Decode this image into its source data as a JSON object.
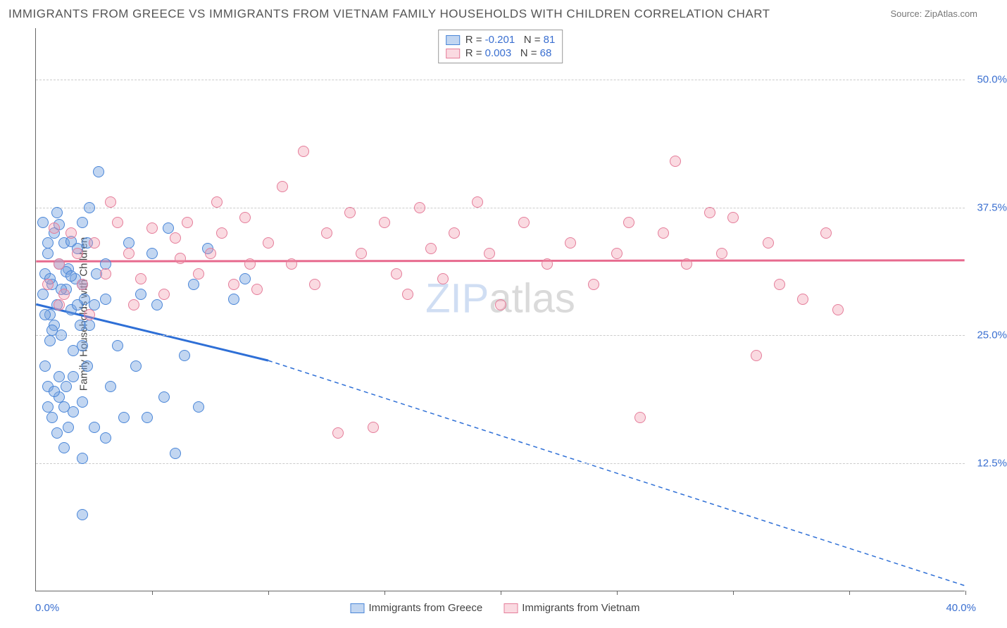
{
  "title": "IMMIGRANTS FROM GREECE VS IMMIGRANTS FROM VIETNAM FAMILY HOUSEHOLDS WITH CHILDREN CORRELATION CHART",
  "source_label": "Source: ZipAtlas.com",
  "watermark_a": "ZIP",
  "watermark_b": "atlas",
  "y_axis_label": "Family Households with Children",
  "colors": {
    "blue_fill": "rgba(120,165,225,0.45)",
    "blue_stroke": "#4a86d8",
    "pink_fill": "rgba(240,150,170,0.35)",
    "pink_stroke": "#e57d9a",
    "blue_line": "#2e6fd6",
    "pink_line": "#e76a8e",
    "axis_text": "#3a6fd0",
    "grid": "#cccccc"
  },
  "chart": {
    "type": "scatter",
    "xlim": [
      0,
      40
    ],
    "ylim": [
      0,
      55
    ],
    "y_ticks": [
      12.5,
      25.0,
      37.5,
      50.0
    ],
    "y_tick_labels": [
      "12.5%",
      "25.0%",
      "37.5%",
      "50.0%"
    ],
    "x_ticks": [
      5,
      10,
      15,
      20,
      25,
      30,
      35,
      40
    ],
    "x_min_label": "0.0%",
    "x_max_label": "40.0%"
  },
  "series": [
    {
      "name": "Immigrants from Greece",
      "color_key": "blue",
      "R_label": "R =",
      "R_value": "-0.201",
      "N_label": "N =",
      "N_value": "81",
      "trend": {
        "x1": 0,
        "y1": 28.0,
        "x2_solid": 10,
        "y2_solid": 22.5,
        "x2_dash": 40,
        "y2_dash": 0.5
      },
      "points": [
        [
          0.3,
          29
        ],
        [
          0.4,
          31
        ],
        [
          0.5,
          33
        ],
        [
          0.6,
          27
        ],
        [
          0.7,
          30
        ],
        [
          0.8,
          35
        ],
        [
          0.9,
          28
        ],
        [
          1.0,
          32
        ],
        [
          1.1,
          25
        ],
        [
          1.2,
          34
        ],
        [
          1.3,
          29.5
        ],
        [
          1.4,
          31.5
        ],
        [
          1.5,
          27.5
        ],
        [
          1.6,
          23.5
        ],
        [
          1.7,
          30.5
        ],
        [
          1.8,
          33.5
        ],
        [
          1.9,
          26
        ],
        [
          2.0,
          24
        ],
        [
          2.1,
          28.5
        ],
        [
          2.2,
          22
        ],
        [
          0.5,
          18
        ],
        [
          0.7,
          17
        ],
        [
          0.9,
          15.5
        ],
        [
          1.0,
          19
        ],
        [
          1.2,
          14
        ],
        [
          1.4,
          16
        ],
        [
          1.6,
          17.5
        ],
        [
          2.0,
          13
        ],
        [
          2.3,
          37.5
        ],
        [
          2.5,
          28
        ],
        [
          2.7,
          41
        ],
        [
          3.0,
          32
        ],
        [
          3.2,
          20
        ],
        [
          3.5,
          24
        ],
        [
          3.8,
          17
        ],
        [
          4.0,
          34
        ],
        [
          4.3,
          22
        ],
        [
          4.5,
          29
        ],
        [
          5.0,
          33
        ],
        [
          5.5,
          19
        ],
        [
          5.7,
          35.5
        ],
        [
          6.0,
          13.5
        ],
        [
          6.4,
          23
        ],
        [
          6.8,
          30
        ],
        [
          7.0,
          18
        ],
        [
          7.4,
          33.5
        ],
        [
          8.5,
          28.5
        ],
        [
          9.0,
          30.5
        ],
        [
          2.0,
          7.5
        ],
        [
          1.3,
          20
        ],
        [
          0.4,
          22
        ],
        [
          0.6,
          24.5
        ],
        [
          0.8,
          26
        ],
        [
          1.0,
          21
        ],
        [
          1.1,
          29.5
        ],
        [
          1.3,
          31.2
        ],
        [
          1.5,
          30.8
        ],
        [
          0.3,
          36
        ],
        [
          0.5,
          34
        ],
        [
          0.9,
          37
        ],
        [
          0.4,
          27
        ],
        [
          0.7,
          25.5
        ],
        [
          1.8,
          28
        ],
        [
          2.0,
          30
        ],
        [
          2.3,
          26
        ],
        [
          2.6,
          31
        ],
        [
          3.0,
          28.5
        ],
        [
          1.0,
          35.8
        ],
        [
          1.5,
          34.2
        ],
        [
          2.0,
          36
        ],
        [
          4.8,
          17
        ],
        [
          5.2,
          28
        ],
        [
          2.0,
          18.5
        ],
        [
          2.5,
          16
        ],
        [
          3.0,
          15
        ],
        [
          2.2,
          34
        ],
        [
          0.5,
          20
        ],
        [
          0.8,
          19.5
        ],
        [
          1.2,
          18
        ],
        [
          1.6,
          21
        ],
        [
          0.6,
          30.5
        ]
      ]
    },
    {
      "name": "Immigrants from Vietnam",
      "color_key": "pink",
      "R_label": "R =",
      "R_value": "0.003",
      "N_label": "N =",
      "N_value": "68",
      "trend": {
        "x1": 0,
        "y1": 32.2,
        "x2_solid": 40,
        "y2_solid": 32.3,
        "x2_dash": 40,
        "y2_dash": 32.3
      },
      "points": [
        [
          1.5,
          35
        ],
        [
          2.0,
          30
        ],
        [
          2.5,
          34
        ],
        [
          3.0,
          31
        ],
        [
          3.5,
          36
        ],
        [
          4.0,
          33
        ],
        [
          4.5,
          30.5
        ],
        [
          5.0,
          35.5
        ],
        [
          5.5,
          29
        ],
        [
          6.0,
          34.5
        ],
        [
          6.5,
          36
        ],
        [
          7.0,
          31
        ],
        [
          7.5,
          33
        ],
        [
          8.0,
          35
        ],
        [
          8.5,
          30
        ],
        [
          9.0,
          36.5
        ],
        [
          9.5,
          29.5
        ],
        [
          10.0,
          34
        ],
        [
          10.6,
          39.5
        ],
        [
          11.0,
          32
        ],
        [
          11.5,
          43
        ],
        [
          12.0,
          30
        ],
        [
          12.5,
          35
        ],
        [
          13.0,
          15.5
        ],
        [
          13.5,
          37
        ],
        [
          14.0,
          33
        ],
        [
          14.5,
          16
        ],
        [
          15.0,
          36
        ],
        [
          15.5,
          31
        ],
        [
          16.0,
          29
        ],
        [
          16.5,
          37.5
        ],
        [
          17.0,
          33.5
        ],
        [
          17.5,
          30.5
        ],
        [
          18.0,
          35
        ],
        [
          19.0,
          38
        ],
        [
          19.5,
          33
        ],
        [
          20.0,
          28
        ],
        [
          21.0,
          36
        ],
        [
          22.0,
          32
        ],
        [
          23.0,
          34
        ],
        [
          24.0,
          30
        ],
        [
          25.0,
          33
        ],
        [
          25.5,
          36
        ],
        [
          26.0,
          17
        ],
        [
          27.0,
          35
        ],
        [
          27.5,
          42
        ],
        [
          28.0,
          32
        ],
        [
          29.0,
          37
        ],
        [
          29.5,
          33
        ],
        [
          30.0,
          36.5
        ],
        [
          31.0,
          23
        ],
        [
          31.5,
          34
        ],
        [
          32.0,
          30
        ],
        [
          33.0,
          28.5
        ],
        [
          34.0,
          35
        ],
        [
          34.5,
          27.5
        ],
        [
          1.0,
          32
        ],
        [
          1.2,
          29
        ],
        [
          1.8,
          33
        ],
        [
          2.3,
          27
        ],
        [
          3.2,
          38
        ],
        [
          4.2,
          28
        ],
        [
          6.2,
          32.5
        ],
        [
          7.8,
          38
        ],
        [
          9.2,
          32
        ],
        [
          0.8,
          35.5
        ],
        [
          0.5,
          30
        ],
        [
          1.0,
          28
        ]
      ]
    }
  ],
  "legend_bottom": [
    {
      "label": "Immigrants from Greece",
      "color_key": "blue"
    },
    {
      "label": "Immigrants from Vietnam",
      "color_key": "pink"
    }
  ]
}
